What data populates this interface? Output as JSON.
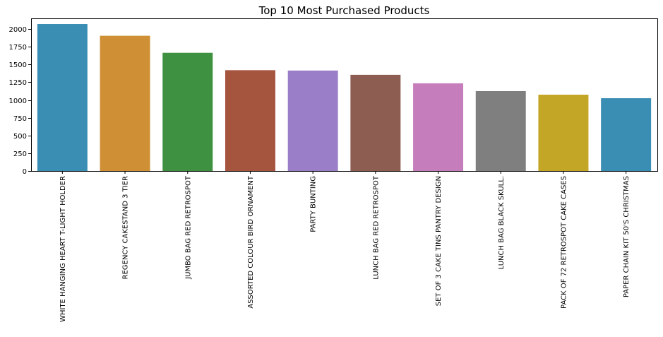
{
  "chart_data": {
    "type": "bar",
    "title": "Top 10 Most Purchased Products",
    "xlabel": "",
    "ylabel": "",
    "ylim": [
      0,
      2150
    ],
    "yticks": [
      0,
      250,
      500,
      750,
      1000,
      1250,
      1500,
      1750,
      2000
    ],
    "grid": false,
    "categories": [
      "WHITE HANGING HEART T-LIGHT HOLDER",
      "REGENCY CAKESTAND 3 TIER",
      "JUMBO BAG RED RETROSPOT",
      "ASSORTED COLOUR BIRD ORNAMENT",
      "PARTY BUNTING",
      "LUNCH BAG RED RETROSPOT",
      "SET OF 3 CAKE TINS PANTRY DESIGN",
      "LUNCH BAG  BLACK SKULL.",
      "PACK OF 72 RETROSPOT CAKE CASES",
      "PAPER CHAIN KIT 50'S CHRISTMAS"
    ],
    "values": [
      2070,
      1905,
      1665,
      1420,
      1415,
      1355,
      1235,
      1125,
      1075,
      1025
    ],
    "colors": [
      "#3a8db3",
      "#cf8f34",
      "#3d9141",
      "#a5543e",
      "#9a7ec8",
      "#8e5d52",
      "#c67dbb",
      "#7f7f7f",
      "#c3a626",
      "#3a8db3"
    ]
  }
}
